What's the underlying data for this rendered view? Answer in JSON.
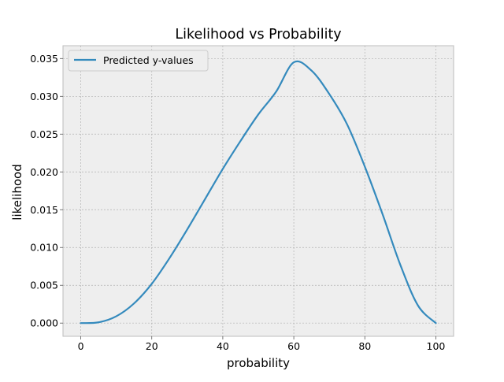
{
  "chart_data": {
    "type": "line",
    "title": "Likelihood vs Probability",
    "xlabel": "probability",
    "ylabel": "likelihood",
    "xlim": [
      -5,
      105
    ],
    "ylim": [
      -0.00175,
      0.0367
    ],
    "xticks": [
      0,
      20,
      40,
      60,
      80,
      100
    ],
    "yticks": [
      0.0,
      0.005,
      0.01,
      0.015,
      0.02,
      0.025,
      0.03,
      0.035
    ],
    "xtick_labels": [
      "0",
      "20",
      "40",
      "60",
      "80",
      "100"
    ],
    "ytick_labels": [
      "0.000",
      "0.005",
      "0.010",
      "0.015",
      "0.020",
      "0.025",
      "0.030",
      "0.035"
    ],
    "grid": true,
    "legend_position": "top-left",
    "series": [
      {
        "name": "Predicted y-values",
        "color": "#348abd",
        "x": [
          0,
          5,
          10,
          15,
          20,
          25,
          30,
          35,
          40,
          45,
          50,
          55,
          60,
          65,
          70,
          75,
          80,
          85,
          90,
          95,
          100
        ],
        "y": [
          0.0,
          0.0001,
          0.0009,
          0.0026,
          0.0052,
          0.0086,
          0.0124,
          0.0164,
          0.0204,
          0.0241,
          0.0276,
          0.0306,
          0.0345,
          0.0334,
          0.0303,
          0.0263,
          0.0207,
          0.0144,
          0.0077,
          0.0023,
          0.0
        ]
      }
    ]
  }
}
